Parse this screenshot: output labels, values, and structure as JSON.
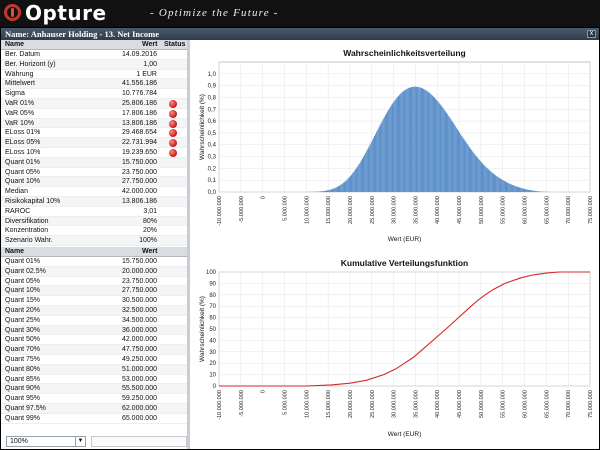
{
  "brand": {
    "name": "Opture",
    "tagline": "- Optimize the Future -",
    "logo_icon": "opture-logo-icon",
    "accent": "#c0392b"
  },
  "window": {
    "title": "Name: Anhauser Holding - 13. Net Income",
    "close_label": "x"
  },
  "stats_table": {
    "headers": {
      "name": "Name",
      "value": "Wert",
      "status": "Status"
    },
    "rows": [
      {
        "name": "Ber. Datum",
        "value": "14.09.2016",
        "status": ""
      },
      {
        "name": "Ber. Horizont (y)",
        "value": "1,00",
        "status": ""
      },
      {
        "name": "Währung",
        "value": "1 EUR",
        "status": ""
      },
      {
        "name": "Mittelwert",
        "value": "41.556.186",
        "status": ""
      },
      {
        "name": "Sigma",
        "value": "10.776.784",
        "status": ""
      },
      {
        "name": "VaR 01%",
        "value": "25.806.186",
        "status": "red"
      },
      {
        "name": "VaR 05%",
        "value": "17.806.186",
        "status": "red"
      },
      {
        "name": "VaR 10%",
        "value": "13.806.186",
        "status": "red"
      },
      {
        "name": "ELoss 01%",
        "value": "29.468.654",
        "status": "red"
      },
      {
        "name": "ELoss 05%",
        "value": "22.731.994",
        "status": "red"
      },
      {
        "name": "ELoss 10%",
        "value": "19.239.650",
        "status": "red"
      },
      {
        "name": "Quant 01%",
        "value": "15.750.000",
        "status": ""
      },
      {
        "name": "Quant 05%",
        "value": "23.750.000",
        "status": ""
      },
      {
        "name": "Quant 10%",
        "value": "27.750.000",
        "status": ""
      },
      {
        "name": "Median",
        "value": "42.000.000",
        "status": ""
      },
      {
        "name": "Risikokapital 10%",
        "value": "13.806.186",
        "status": ""
      },
      {
        "name": "RAROC",
        "value": "3,01",
        "status": ""
      },
      {
        "name": "Diversifikation",
        "value": "80%",
        "status": ""
      },
      {
        "name": "Konzentration",
        "value": "20%",
        "status": ""
      },
      {
        "name": "Szenario Wahr.",
        "value": "100%",
        "status": ""
      }
    ]
  },
  "quantile_table": {
    "headers": {
      "name": "Name",
      "value": "Wert"
    },
    "rows": [
      {
        "name": "Quant 01%",
        "value": "15.750.000"
      },
      {
        "name": "Quant 02.5%",
        "value": "20.000.000"
      },
      {
        "name": "Quant 05%",
        "value": "23.750.000"
      },
      {
        "name": "Quant 10%",
        "value": "27.750.000"
      },
      {
        "name": "Quant 15%",
        "value": "30.500.000"
      },
      {
        "name": "Quant 20%",
        "value": "32.500.000"
      },
      {
        "name": "Quant 25%",
        "value": "34.500.000"
      },
      {
        "name": "Quant 30%",
        "value": "36.000.000"
      },
      {
        "name": "Quant 50%",
        "value": "42.000.000"
      },
      {
        "name": "Quant 70%",
        "value": "47.750.000"
      },
      {
        "name": "Quant 75%",
        "value": "49.250.000"
      },
      {
        "name": "Quant 80%",
        "value": "51.000.000"
      },
      {
        "name": "Quant 85%",
        "value": "53.000.000"
      },
      {
        "name": "Quant 90%",
        "value": "55.500.000"
      },
      {
        "name": "Quant 95%",
        "value": "59.250.000"
      },
      {
        "name": "Quant 97.5%",
        "value": "62.000.000"
      },
      {
        "name": "Quant 99%",
        "value": "65.000.000"
      }
    ]
  },
  "zoom": {
    "value": "100%",
    "chevron_icon": "chevron-down-icon"
  },
  "chart_data": [
    {
      "type": "bar",
      "title": "Wahrscheinlichkeitsverteilung",
      "xlabel": "Wert (EUR)",
      "ylabel": "Wahrscheinlichkeit (%)",
      "xlim": [
        -10000000,
        75000000
      ],
      "ylim": [
        0,
        1.1
      ],
      "yticks": [
        0,
        0.1,
        0.2,
        0.3,
        0.4,
        0.5,
        0.6,
        0.7,
        0.8,
        0.9,
        1.0
      ],
      "ytick_labels": [
        "0,0",
        "0,1",
        "0,2",
        "0,3",
        "0,4",
        "0,5",
        "0,6",
        "0,7",
        "0,8",
        "0,9",
        "1,0"
      ],
      "xticks": [
        -10000000,
        -5000000,
        0,
        5000000,
        10000000,
        15000000,
        20000000,
        25000000,
        30000000,
        35000000,
        40000000,
        45000000,
        50000000,
        55000000,
        60000000,
        65000000,
        70000000,
        75000000
      ],
      "xtick_labels": [
        "-10.000.000",
        "-5.000.000",
        "0",
        "5.000.000",
        "10.000.000",
        "15.000.000",
        "20.000.000",
        "25.000.000",
        "30.000.000",
        "35.000.000",
        "40.000.000",
        "45.000.000",
        "50.000.000",
        "55.000.000",
        "60.000.000",
        "65.000.000",
        "70.000.000",
        "75.000.000"
      ],
      "bin_start": 10000000,
      "bin_width": 250000,
      "values": [
        0.0,
        0.0,
        0.001,
        0.001,
        0.001,
        0.001,
        0.002,
        0.002,
        0.002,
        0.003,
        0.003,
        0.004,
        0.005,
        0.006,
        0.006,
        0.008,
        0.009,
        0.01,
        0.012,
        0.014,
        0.016,
        0.018,
        0.021,
        0.024,
        0.027,
        0.031,
        0.035,
        0.039,
        0.044,
        0.049,
        0.054,
        0.06,
        0.067,
        0.074,
        0.081,
        0.089,
        0.097,
        0.106,
        0.116,
        0.126,
        0.136,
        0.147,
        0.159,
        0.171,
        0.183,
        0.196,
        0.21,
        0.224,
        0.238,
        0.253,
        0.268,
        0.284,
        0.3,
        0.316,
        0.333,
        0.35,
        0.367,
        0.385,
        0.402,
        0.42,
        0.438,
        0.456,
        0.474,
        0.492,
        0.51,
        0.528,
        0.546,
        0.564,
        0.582,
        0.599,
        0.616,
        0.633,
        0.65,
        0.666,
        0.682,
        0.697,
        0.712,
        0.727,
        0.741,
        0.754,
        0.767,
        0.78,
        0.792,
        0.803,
        0.813,
        0.823,
        0.833,
        0.841,
        0.849,
        0.856,
        0.863,
        0.869,
        0.874,
        0.878,
        0.882,
        0.885,
        0.888,
        0.889,
        0.891,
        0.891,
        0.891,
        0.89,
        0.889,
        0.887,
        0.884,
        0.881,
        0.877,
        0.872,
        0.867,
        0.862,
        0.856,
        0.849,
        0.842,
        0.834,
        0.826,
        0.817,
        0.808,
        0.799,
        0.789,
        0.778,
        0.768,
        0.757,
        0.745,
        0.733,
        0.721,
        0.709,
        0.696,
        0.683,
        0.67,
        0.657,
        0.643,
        0.63,
        0.616,
        0.602,
        0.588,
        0.574,
        0.559,
        0.545,
        0.531,
        0.517,
        0.503,
        0.488,
        0.474,
        0.461,
        0.447,
        0.433,
        0.42,
        0.406,
        0.393,
        0.38,
        0.367,
        0.355,
        0.342,
        0.33,
        0.318,
        0.307,
        0.295,
        0.284,
        0.273,
        0.263,
        0.252,
        0.242,
        0.232,
        0.223,
        0.213,
        0.204,
        0.196,
        0.187,
        0.179,
        0.171,
        0.163,
        0.156,
        0.148,
        0.141,
        0.135,
        0.128,
        0.122,
        0.116,
        0.11,
        0.104,
        0.099,
        0.094,
        0.089,
        0.084,
        0.079,
        0.074,
        0.07,
        0.066,
        0.062,
        0.058,
        0.054,
        0.051,
        0.047,
        0.044,
        0.041,
        0.038,
        0.035,
        0.033,
        0.03,
        0.028,
        0.025,
        0.023,
        0.021,
        0.019,
        0.017,
        0.016,
        0.014,
        0.012,
        0.011,
        0.01,
        0.008,
        0.007,
        0.006,
        0.005,
        0.004,
        0.004,
        0.003,
        0.002,
        0.002,
        0.001,
        0.001,
        0.001,
        0.0
      ],
      "color": "#5b8fc9",
      "grid": true
    },
    {
      "type": "line",
      "title": "Kumulative Verteilungsfunktion",
      "xlabel": "Wert (EUR)",
      "ylabel": "Wahrscheinlichkeit (%)",
      "xlim": [
        -10000000,
        75000000
      ],
      "ylim": [
        0,
        100
      ],
      "yticks": [
        0,
        10,
        20,
        30,
        40,
        50,
        60,
        70,
        80,
        90,
        100
      ],
      "ytick_labels": [
        "0",
        "10",
        "20",
        "30",
        "40",
        "50",
        "60",
        "70",
        "80",
        "90",
        "100"
      ],
      "xticks": [
        -10000000,
        -5000000,
        0,
        5000000,
        10000000,
        15000000,
        20000000,
        25000000,
        30000000,
        35000000,
        40000000,
        45000000,
        50000000,
        55000000,
        60000000,
        65000000,
        70000000,
        75000000
      ],
      "xtick_labels": [
        "-10.000.000",
        "-5.000.000",
        "0",
        "5.000.000",
        "10.000.000",
        "15.000.000",
        "20.000.000",
        "25.000.000",
        "30.000.000",
        "35.000.000",
        "40.000.000",
        "45.000.000",
        "50.000.000",
        "55.000.000",
        "60.000.000",
        "65.000.000",
        "70.000.000",
        "75.000.000"
      ],
      "x": [
        -10000000,
        10000000,
        15750000,
        20000000,
        23750000,
        27750000,
        30500000,
        32500000,
        34500000,
        36000000,
        42000000,
        47750000,
        49250000,
        51000000,
        53000000,
        55500000,
        59250000,
        62000000,
        65000000,
        68000000,
        75000000
      ],
      "y": [
        0,
        0,
        1,
        2.5,
        5,
        10,
        15,
        20,
        25,
        30,
        50,
        70,
        75,
        80,
        85,
        90,
        95,
        97.5,
        99,
        100,
        100
      ],
      "color": "#d62728",
      "grid": true
    }
  ]
}
